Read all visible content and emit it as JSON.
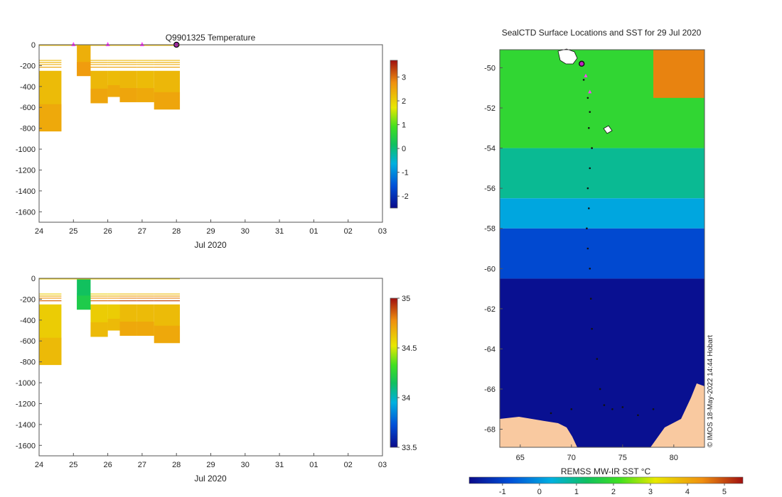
{
  "chart_data": [
    {
      "type": "heatmap",
      "title": "Q9901325  Temperature",
      "xlabel": "Jul 2020",
      "ylabel": "",
      "x_ticks": [
        "24",
        "25",
        "26",
        "27",
        "28",
        "29",
        "30",
        "31",
        "01",
        "02",
        "03"
      ],
      "xlim": [
        24,
        34
      ],
      "y_ticks": [
        "0",
        "-200",
        "-400",
        "-600",
        "-800",
        "-1000",
        "-1200",
        "-1400",
        "-1600"
      ],
      "ylim": [
        -1700,
        0
      ],
      "colorbar": {
        "ticks": [
          "3",
          "2",
          "1",
          "0",
          "-1",
          "-2"
        ],
        "range": [
          -2.5,
          3.7
        ]
      },
      "profile_markers_day": [
        25.0,
        26.0,
        27.0
      ],
      "current_marker_day": 28.0,
      "profiles": [
        {
          "t0": 24.0,
          "t1": 24.65,
          "depth": 830,
          "value": 2.25
        },
        {
          "t0": 25.1,
          "t1": 25.5,
          "depth": 300,
          "value": 2.4
        },
        {
          "t0": 25.5,
          "t1": 26.0,
          "depth": 560,
          "value": 2.3
        },
        {
          "t0": 26.0,
          "t1": 26.35,
          "depth": 500,
          "value": 2.25
        },
        {
          "t0": 26.35,
          "t1": 26.85,
          "depth": 550,
          "value": 2.3
        },
        {
          "t0": 26.85,
          "t1": 27.35,
          "depth": 550,
          "value": 2.25
        },
        {
          "t0": 27.35,
          "t1": 28.1,
          "depth": 620,
          "value": 2.3
        }
      ]
    },
    {
      "type": "heatmap",
      "title": "",
      "xlabel": "Jul 2020",
      "ylabel": "",
      "x_ticks": [
        "24",
        "25",
        "26",
        "27",
        "28",
        "29",
        "30",
        "31",
        "01",
        "02",
        "03"
      ],
      "xlim": [
        24,
        34
      ],
      "y_ticks": [
        "0",
        "-200",
        "-400",
        "-600",
        "-800",
        "-1000",
        "-1200",
        "-1400",
        "-1600"
      ],
      "ylim": [
        -1700,
        0
      ],
      "colorbar": {
        "ticks": [
          "35",
          "34.5",
          "34",
          "33.5"
        ],
        "range": [
          33.5,
          35.0
        ]
      },
      "profiles": [
        {
          "t0": 24.0,
          "t1": 24.65,
          "depth": 830,
          "value": 34.6
        },
        {
          "t0": 25.1,
          "t1": 25.5,
          "depth": 300,
          "value": 34.15
        },
        {
          "t0": 25.5,
          "t1": 26.0,
          "depth": 560,
          "value": 34.6
        },
        {
          "t0": 26.0,
          "t1": 26.35,
          "depth": 500,
          "value": 34.6
        },
        {
          "t0": 26.35,
          "t1": 26.85,
          "depth": 550,
          "value": 34.65
        },
        {
          "t0": 26.85,
          "t1": 27.35,
          "depth": 550,
          "value": 34.65
        },
        {
          "t0": 27.35,
          "t1": 28.1,
          "depth": 620,
          "value": 34.65
        }
      ]
    },
    {
      "type": "heatmap",
      "title": "SealCTD Surface Locations and SST for 29 Jul 2020",
      "xlabel": "",
      "ylabel": "",
      "x_ticks": [
        "65",
        "70",
        "75",
        "80"
      ],
      "xlim": [
        63,
        83
      ],
      "y_ticks": [
        "-50",
        "-52",
        "-54",
        "-56",
        "-58",
        "-60",
        "-62",
        "-64",
        "-66",
        "-68"
      ],
      "ylim": [
        -68.9,
        -49.1
      ],
      "colorbar": {
        "label": "REMSS MW-IR SST °C",
        "ticks": [
          "-1",
          "0",
          "1",
          "2",
          "3",
          "4",
          "5"
        ],
        "range": [
          -1.9,
          5.5
        ]
      },
      "watermark": "© IMOS 18-May-2022 14:44 Hobart",
      "current_location": {
        "lon": 71.0,
        "lat": -49.8
      },
      "recent_locations": [
        {
          "lon": 71.4,
          "lat": -50.4
        },
        {
          "lon": 71.8,
          "lat": -51.2
        }
      ],
      "track": [
        {
          "lon": 71.2,
          "lat": -50.6
        },
        {
          "lon": 71.6,
          "lat": -51.5
        },
        {
          "lon": 71.8,
          "lat": -52.2
        },
        {
          "lon": 71.7,
          "lat": -53.0
        },
        {
          "lon": 72.0,
          "lat": -54.0
        },
        {
          "lon": 71.8,
          "lat": -55.0
        },
        {
          "lon": 71.6,
          "lat": -56.0
        },
        {
          "lon": 71.7,
          "lat": -57.0
        },
        {
          "lon": 71.5,
          "lat": -58.0
        },
        {
          "lon": 71.6,
          "lat": -59.0
        },
        {
          "lon": 71.8,
          "lat": -60.0
        },
        {
          "lon": 71.9,
          "lat": -61.5
        },
        {
          "lon": 72.0,
          "lat": -63.0
        },
        {
          "lon": 72.5,
          "lat": -64.5
        },
        {
          "lon": 72.8,
          "lat": -66.0
        },
        {
          "lon": 73.2,
          "lat": -66.8
        },
        {
          "lon": 74.0,
          "lat": -67.0
        },
        {
          "lon": 75.0,
          "lat": -66.9
        },
        {
          "lon": 70.0,
          "lat": -67.0
        },
        {
          "lon": 68.0,
          "lat": -67.2
        },
        {
          "lon": 76.5,
          "lat": -67.3
        },
        {
          "lon": 78.0,
          "lat": -67.0
        }
      ],
      "sst_bands": [
        {
          "lat_top": -49.1,
          "lat_bottom": -54.0,
          "value": 1.9
        },
        {
          "lat_top": -54.0,
          "lat_bottom": -56.5,
          "value": 0.9
        },
        {
          "lat_top": -56.5,
          "lat_bottom": -58.0,
          "value": 0.2
        },
        {
          "lat_top": -58.0,
          "lat_bottom": -60.5,
          "value": -0.9
        },
        {
          "lat_top": -60.5,
          "lat_bottom": -68.9,
          "value": -1.8
        }
      ],
      "sst_warm_patch": {
        "lon_from": 78.0,
        "lon_to": 83.0,
        "lat_from": -49.1,
        "lat_to": -51.5,
        "value": 4.5
      }
    }
  ]
}
